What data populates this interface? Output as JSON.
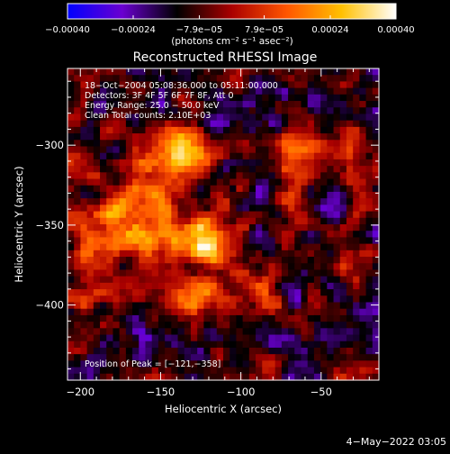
{
  "chart_data": {
    "type": "heatmap",
    "title": "Reconstructed RHESSI Image",
    "xlabel": "Heliocentric X (arcsec)",
    "ylabel": "Heliocentric Y (arcsec)",
    "xlim": [
      -208,
      -14
    ],
    "ylim": [
      -447,
      -252
    ],
    "x_ticks": [
      -200,
      -150,
      -100,
      -50
    ],
    "x_tick_labels": [
      "−200",
      "−150",
      "−100",
      "−50"
    ],
    "y_ticks": [
      -300,
      -350,
      -400
    ],
    "y_tick_labels": [
      "−300",
      "−350",
      "−400"
    ],
    "colorbar": {
      "min": -0.0004,
      "max": 0.0004,
      "ticks": [
        -0.0004,
        -0.00024,
        -7.9e-05,
        7.9e-05,
        0.00024,
        0.0004
      ],
      "tick_labels": [
        "−0.00040",
        "−0.00024",
        "−7.9e−05",
        "7.9e−05",
        "0.00024",
        "0.00040"
      ],
      "unit_label": "(photons cm⁻² s⁻¹ asec⁻²)",
      "colors": [
        "#0000ff",
        "#6a00d0",
        "#000000",
        "#aa0000",
        "#ff5500",
        "#ffc000",
        "#ffffff"
      ]
    },
    "annotations": [
      "18−Oct−2004 05:08:36.000 to 05:11:00.000",
      "Detectors: 3F 4F 5F 6F 7F 8F, Att 0",
      "Energy Range: 25.0 − 50.0 keV",
      "Clean     Total counts: 2.10E+03"
    ],
    "peak_label": "Position of Peak = [−121,−358]",
    "peak": [
      -121,
      -358
    ],
    "sources": [
      {
        "x": -133,
        "y": -302,
        "amp": 0.00037,
        "sx": 13,
        "sy": 11
      },
      {
        "x": -152,
        "y": -322,
        "amp": 0.00022,
        "sx": 14,
        "sy": 12
      },
      {
        "x": -172,
        "y": -346,
        "amp": 0.00028,
        "sx": 14,
        "sy": 13
      },
      {
        "x": -121,
        "y": -358,
        "amp": 0.0004,
        "sx": 12,
        "sy": 11
      },
      {
        "x": -150,
        "y": -360,
        "amp": 0.00024,
        "sx": 13,
        "sy": 11
      },
      {
        "x": -125,
        "y": -394,
        "amp": 0.00032,
        "sx": 15,
        "sy": 9
      },
      {
        "x": -90,
        "y": -388,
        "amp": 0.00018,
        "sx": 9,
        "sy": 9
      },
      {
        "x": -193,
        "y": -378,
        "amp": 0.00022,
        "sx": 9,
        "sy": 20
      },
      {
        "x": -205,
        "y": -316,
        "amp": 0.00014,
        "sx": 7,
        "sy": 9
      },
      {
        "x": -63,
        "y": -295,
        "amp": 0.00018,
        "sx": 9,
        "sy": 14
      },
      {
        "x": -68,
        "y": -335,
        "amp": 0.00012,
        "sx": 9,
        "sy": 9
      },
      {
        "x": -33,
        "y": -305,
        "amp": 0.00012,
        "sx": 8,
        "sy": 13
      },
      {
        "x": -45,
        "y": -375,
        "amp": 8e-05,
        "sx": 10,
        "sy": 8
      },
      {
        "x": -150,
        "y": -420,
        "amp": -6e-05,
        "sx": 18,
        "sy": 12
      },
      {
        "x": -85,
        "y": -272,
        "amp": -5e-05,
        "sx": 20,
        "sy": 14
      }
    ]
  },
  "footer": {
    "date": "4−May−2022 03:05"
  }
}
